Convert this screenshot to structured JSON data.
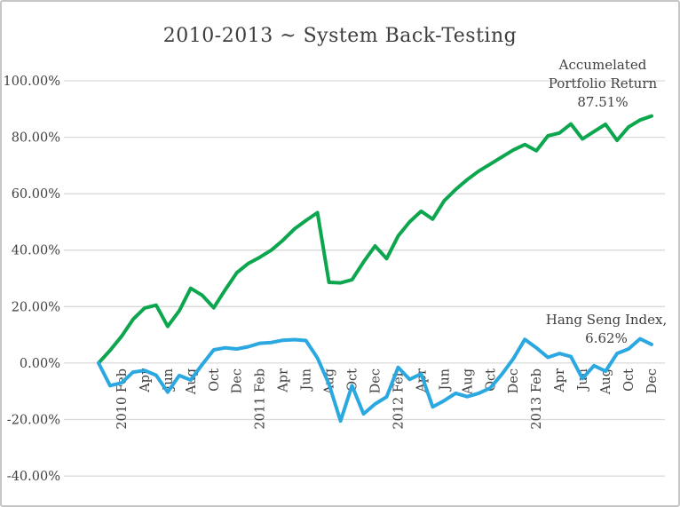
{
  "chart_data": {
    "type": "line",
    "title": "2010-2013 ~ System Back-Testing",
    "grid": true,
    "legend_position": "none",
    "ylim": [
      -45,
      108
    ],
    "y_axis": {
      "tick_labels": [
        "100.00%",
        "80.00%",
        "60.00%",
        "40.00%",
        "20.00%",
        "0.00%",
        "-20.00%",
        "-40.00%"
      ],
      "tick_values": [
        100,
        80,
        60,
        40,
        20,
        0,
        -20,
        -40
      ]
    },
    "x_axis": {
      "tick_labels": [
        "2010 Feb",
        "Apr",
        "Jun",
        "Aug",
        "Oct",
        "Dec",
        "2011 Feb",
        "Apr",
        "Jun",
        "Aug",
        "Oct",
        "Dec",
        "2012 Feb",
        "Apr",
        "Jun",
        "Aug",
        "Oct",
        "Dec",
        "2013 Feb",
        "Apr",
        "Jun",
        "Aug",
        "Oct",
        "Dec"
      ],
      "note_monthly_points": 49,
      "tick_start_index": 2,
      "tick_step": 2
    },
    "series": [
      {
        "name": "Accumelated Portfolio Return",
        "color": "#0ca64e",
        "final_value_label": "87.51%",
        "values": [
          0,
          4.5,
          9.5,
          15.5,
          19.5,
          20.5,
          13.0,
          18.5,
          26.5,
          24.0,
          19.6,
          26.0,
          32.0,
          35.3,
          37.5,
          40.0,
          43.5,
          47.5,
          50.5,
          53.3,
          28.6,
          28.4,
          29.5,
          35.8,
          41.5,
          37.0,
          45.0,
          50.0,
          53.8,
          51.0,
          57.5,
          61.5,
          65.0,
          68.0,
          70.5,
          73.0,
          75.5,
          77.4,
          75.2,
          80.5,
          81.5,
          84.7,
          79.4,
          82.0,
          84.6,
          78.9,
          83.6,
          86.1,
          87.51
        ]
      },
      {
        "name": "Hang Seng Index",
        "color": "#2ba8e0",
        "final_value_label": "6.62%",
        "values": [
          0,
          -8.0,
          -7.0,
          -3.2,
          -2.6,
          -4.3,
          -10.3,
          -4.4,
          -6.0,
          -0.5,
          4.7,
          5.4,
          5.0,
          5.8,
          7.0,
          7.3,
          8.1,
          8.3,
          8.0,
          1.8,
          -7.5,
          -20.5,
          -8.0,
          -18.0,
          -14.5,
          -12.0,
          -1.5,
          -5.8,
          -3.8,
          -15.5,
          -13.3,
          -10.7,
          -11.9,
          -10.7,
          -8.8,
          -4.0,
          1.5,
          8.4,
          5.4,
          2.0,
          3.4,
          2.3,
          -5.5,
          -0.9,
          -2.9,
          3.4,
          5.0,
          8.6,
          6.62
        ]
      }
    ],
    "annotations": [
      {
        "id": "portfolio-return",
        "lines": [
          "Accumelated",
          "Portfolio Return",
          "87.51%"
        ]
      },
      {
        "id": "hang-seng",
        "lines": [
          "Hang Seng Index,",
          "6.62%"
        ]
      }
    ],
    "colors": {
      "gridline": "#d9d9d9",
      "axis_text": "#404040",
      "title_text": "#3d3d3d",
      "frame_border": "#c6c6c6",
      "background": "#ffffff"
    }
  }
}
